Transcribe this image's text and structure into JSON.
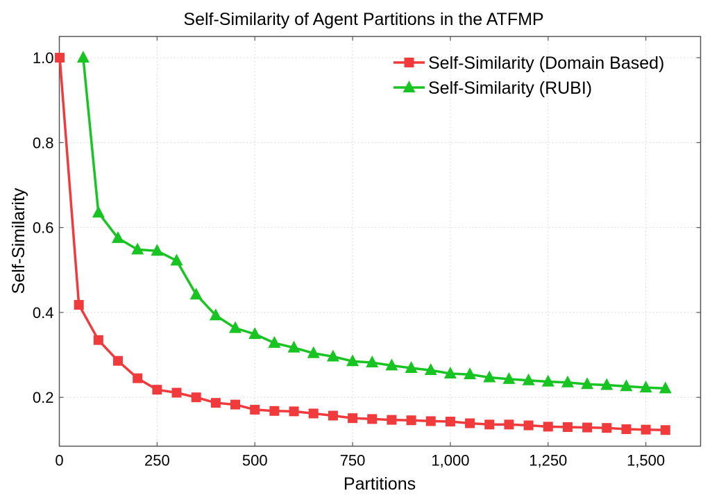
{
  "chart_data": {
    "type": "line",
    "title": "Self-Similarity of Agent Partitions in the ATFMP",
    "xlabel": "Partitions",
    "ylabel": "Self-Similarity",
    "xlim": [
      0,
      1640
    ],
    "ylim": [
      0.085,
      1.05
    ],
    "xticks": [
      0,
      250,
      500,
      750,
      1000,
      1250,
      1500
    ],
    "xtick_labels": [
      "0",
      "250",
      "500",
      "750",
      "1,000",
      "1,250",
      "1,500"
    ],
    "yticks": [
      0.2,
      0.4,
      0.6,
      0.8,
      1.0
    ],
    "ytick_labels": [
      "0.2",
      "0.4",
      "0.6",
      "0.8",
      "1.0"
    ],
    "grid": true,
    "legend_position": "top-right",
    "series": [
      {
        "name": "Self-Similarity (Domain Based)",
        "color": "#f03a3c",
        "marker": "square",
        "x": [
          1,
          50,
          100,
          150,
          200,
          250,
          300,
          350,
          400,
          450,
          500,
          550,
          600,
          650,
          700,
          750,
          800,
          850,
          900,
          950,
          1000,
          1050,
          1100,
          1150,
          1200,
          1250,
          1300,
          1350,
          1400,
          1450,
          1500,
          1550
        ],
        "y": [
          1.0,
          0.418,
          0.335,
          0.286,
          0.245,
          0.218,
          0.211,
          0.2,
          0.187,
          0.183,
          0.171,
          0.168,
          0.167,
          0.162,
          0.157,
          0.151,
          0.149,
          0.147,
          0.146,
          0.144,
          0.143,
          0.139,
          0.136,
          0.136,
          0.134,
          0.131,
          0.13,
          0.129,
          0.128,
          0.125,
          0.124,
          0.123
        ]
      },
      {
        "name": "Self-Similarity (RUBI)",
        "color": "#18c422",
        "marker": "triangle",
        "x": [
          61,
          100,
          150,
          200,
          250,
          300,
          350,
          400,
          450,
          500,
          550,
          600,
          650,
          700,
          750,
          800,
          850,
          900,
          950,
          1000,
          1050,
          1100,
          1150,
          1200,
          1250,
          1300,
          1350,
          1400,
          1450,
          1500,
          1550
        ],
        "y": [
          1.0,
          0.635,
          0.575,
          0.548,
          0.545,
          0.522,
          0.442,
          0.393,
          0.363,
          0.349,
          0.328,
          0.317,
          0.304,
          0.296,
          0.285,
          0.282,
          0.275,
          0.269,
          0.264,
          0.256,
          0.254,
          0.247,
          0.243,
          0.24,
          0.237,
          0.235,
          0.231,
          0.229,
          0.226,
          0.223,
          0.221
        ]
      }
    ]
  }
}
